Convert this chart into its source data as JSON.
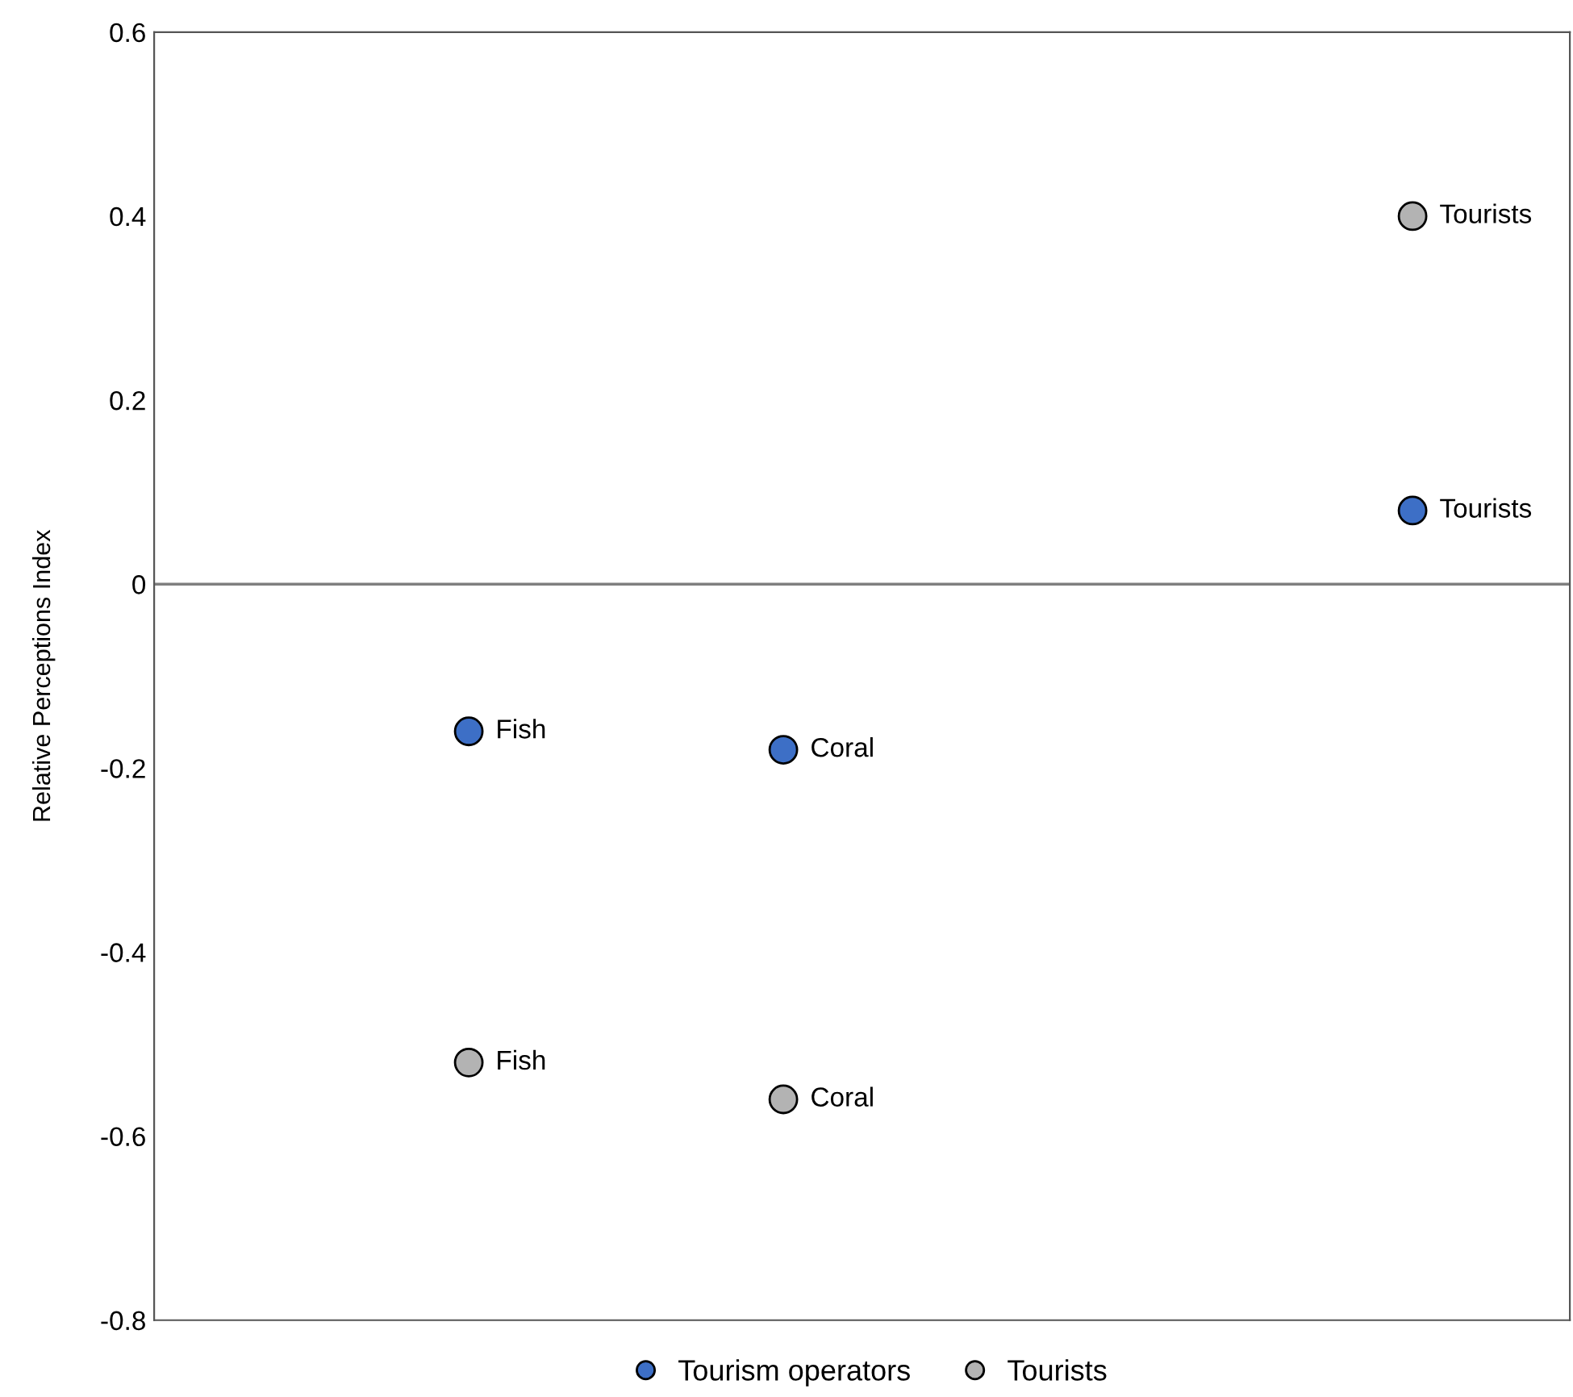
{
  "chart_data": {
    "type": "scatter",
    "ylabel": "Relative Perceptions Index",
    "categories": [
      null,
      null,
      null,
      null
    ],
    "ylim": [
      -0.8,
      0.6
    ],
    "yticks": [
      -0.8,
      -0.6,
      -0.4,
      -0.2,
      0,
      0.2,
      0.4,
      0.6
    ],
    "tick_labels": "y",
    "grid": false,
    "legend": "bottom",
    "marker": "circle",
    "series": [
      {
        "name": "Tourism operators",
        "color": "#3d6fc6",
        "values": [
          -0.16,
          -0.18,
          null,
          0.08
        ],
        "value_labels": [
          "Fish",
          "Coral",
          null,
          "Tourists"
        ]
      },
      {
        "name": "Tourists",
        "color": "#b3b3b3",
        "values": [
          -0.52,
          -0.56,
          null,
          0.4
        ],
        "value_labels": [
          "Fish",
          "Coral",
          null,
          "Tourists"
        ]
      }
    ],
    "ref_lines": [
      {
        "axis": "y",
        "value": 0,
        "color": "#7f7f7f"
      }
    ]
  }
}
